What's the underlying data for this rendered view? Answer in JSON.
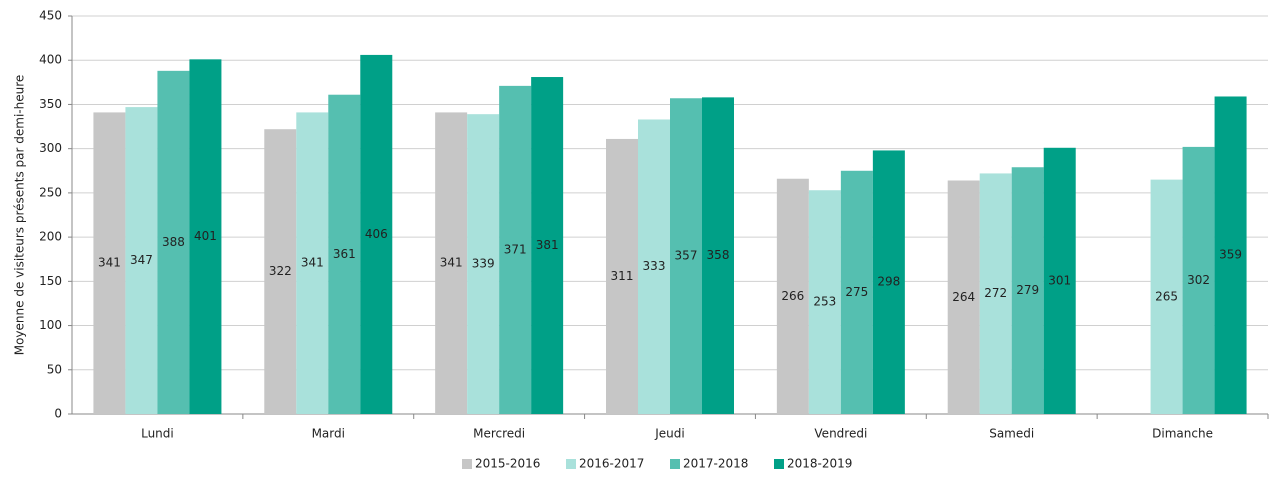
{
  "chart_data": {
    "type": "bar",
    "y_label": "Moyenne de visiteurs présents par demi-heure",
    "categories": [
      "Lundi",
      "Mardi",
      "Mercredi",
      "Jeudi",
      "Vendredi",
      "Samedi",
      "Dimanche"
    ],
    "series": [
      {
        "name": "2015-2016",
        "color": "#c6c6c6",
        "values": [
          341,
          322,
          341,
          311,
          266,
          264,
          null
        ]
      },
      {
        "name": "2016-2017",
        "color": "#a9e1db",
        "values": [
          347,
          341,
          339,
          333,
          253,
          272,
          265
        ]
      },
      {
        "name": "2017-2018",
        "color": "#55bfb0",
        "values": [
          388,
          361,
          371,
          357,
          275,
          279,
          302
        ]
      },
      {
        "name": "2018-2019",
        "color": "#00a087",
        "values": [
          401,
          406,
          381,
          358,
          298,
          301,
          359
        ]
      }
    ],
    "ylim": [
      0,
      450
    ],
    "yticks": [
      0,
      50,
      100,
      150,
      200,
      250,
      300,
      350,
      400,
      450
    ],
    "grid": true,
    "legend": "bottom"
  }
}
